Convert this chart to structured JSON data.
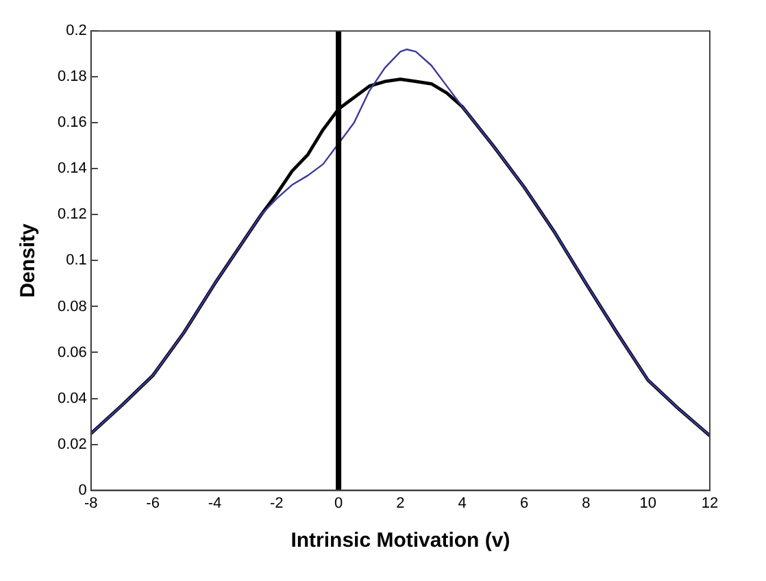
{
  "chart_data": {
    "type": "line",
    "xlabel": "Intrinsic Motivation (v)",
    "ylabel": "Density",
    "xlim": [
      -8,
      12
    ],
    "xticks": [
      -8,
      -6,
      -4,
      -2,
      0,
      2,
      4,
      6,
      8,
      10,
      12
    ],
    "ylim": [
      0,
      0.2
    ],
    "yticks": [
      0,
      0.02,
      0.04,
      0.06,
      0.08,
      0.1,
      0.12,
      0.14,
      0.16,
      0.18,
      0.2
    ],
    "grid": false,
    "legend": false,
    "marker": "none",
    "line_style": "solid",
    "ref_lines": [
      {
        "axis": "x",
        "value": 0,
        "color": "#000000"
      }
    ],
    "series": [
      {
        "color": "#000000",
        "x": [
          -8,
          -7,
          -6,
          -5,
          -4,
          -3,
          -2.5,
          -2,
          -1.5,
          -1,
          -0.5,
          0,
          0.5,
          1,
          1.5,
          2,
          2.5,
          3,
          3.5,
          4,
          5,
          6,
          7,
          8,
          9,
          10,
          11,
          12
        ],
        "values": [
          0.0247,
          0.037,
          0.05,
          0.0686,
          0.09,
          0.11,
          0.12,
          0.129,
          0.139,
          0.146,
          0.157,
          0.166,
          0.171,
          0.176,
          0.178,
          0.179,
          0.178,
          0.177,
          0.173,
          0.167,
          0.15,
          0.132,
          0.112,
          0.09,
          0.0686,
          0.048,
          0.0354,
          0.0238
        ]
      },
      {
        "color": "#3a3a9c",
        "x": [
          -8,
          -7,
          -6,
          -5,
          -4,
          -3,
          -2.5,
          -2,
          -1.5,
          -1,
          -0.5,
          0,
          0.5,
          1,
          1.5,
          2,
          2.2,
          2.5,
          3,
          3.5,
          4,
          5,
          6,
          7,
          8,
          9,
          10,
          11,
          12
        ],
        "values": [
          0.0247,
          0.037,
          0.05,
          0.0686,
          0.09,
          0.11,
          0.12,
          0.127,
          0.133,
          0.137,
          0.142,
          0.151,
          0.16,
          0.174,
          0.184,
          0.191,
          0.192,
          0.191,
          0.185,
          0.176,
          0.167,
          0.15,
          0.132,
          0.112,
          0.09,
          0.0686,
          0.048,
          0.0354,
          0.0238
        ]
      }
    ]
  }
}
